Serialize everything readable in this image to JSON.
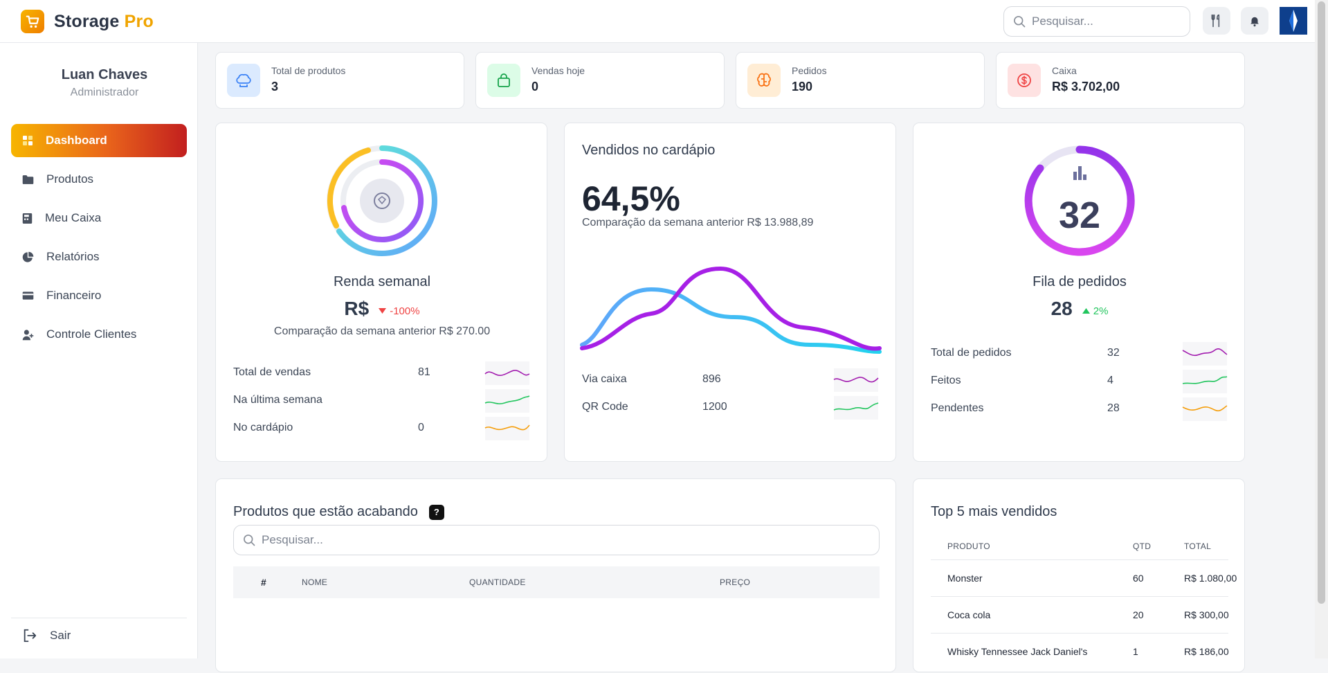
{
  "brand": {
    "name": "Storage",
    "suffix": "Pro"
  },
  "header": {
    "search_placeholder": "Pesquisar..."
  },
  "user": {
    "name": "Luan Chaves",
    "role": "Administrador"
  },
  "sidebar": {
    "items": [
      {
        "label": "Dashboard",
        "icon": "dashboard-icon"
      },
      {
        "label": "Produtos",
        "icon": "folder-icon"
      },
      {
        "label": "Meu Caixa",
        "icon": "cash-register-icon"
      },
      {
        "label": "Relatórios",
        "icon": "pie-chart-icon"
      },
      {
        "label": "Financeiro",
        "icon": "credit-card-icon"
      },
      {
        "label": "Controle Clientes",
        "icon": "user-add-icon"
      }
    ],
    "logout": "Sair"
  },
  "stats": [
    {
      "label": "Total de produtos",
      "value": "3",
      "icon": "chef-hat-icon",
      "color": "#dbeafe"
    },
    {
      "label": "Vendas hoje",
      "value": "0",
      "icon": "shopping-bag-icon",
      "color": "#dcfce7"
    },
    {
      "label": "Pedidos",
      "value": "190",
      "icon": "brain-icon",
      "color": "#ffedd5"
    },
    {
      "label": "Caixa",
      "value": "R$ 3.702,00",
      "icon": "dollar-icon",
      "color": "#fee2e2"
    }
  ],
  "weekly": {
    "title": "Renda semanal",
    "value": "R$",
    "change": "-100%",
    "compare": "Comparação da semana anterior R$ 270.00",
    "rows": [
      {
        "label": "Total de vendas",
        "value": "81"
      },
      {
        "label": "Na última semana",
        "value": ""
      },
      {
        "label": "No cardápio",
        "value": "0"
      }
    ]
  },
  "menu": {
    "title": "Vendidos no cardápio",
    "percent": "64,5%",
    "compare": "Comparação da semana anterior R$ 13.988,89",
    "rows": [
      {
        "label": "Via caixa",
        "value": "896"
      },
      {
        "label": "QR Code",
        "value": "1200"
      }
    ]
  },
  "queue": {
    "ring_value": "32",
    "title": "Fila de pedidos",
    "value": "28",
    "change": "2%",
    "rows": [
      {
        "label": "Total de pedidos",
        "value": "32"
      },
      {
        "label": "Feitos",
        "value": "4"
      },
      {
        "label": "Pendentes",
        "value": "28"
      }
    ]
  },
  "low_stock": {
    "title": "Produtos que estão acabando",
    "help": "?",
    "search_placeholder": "Pesquisar...",
    "columns": [
      "#",
      "NOME",
      "QUANTIDADE",
      "PREÇO"
    ]
  },
  "top5": {
    "title": "Top 5 mais vendidos",
    "columns": [
      "PRODUTO",
      "QTD",
      "TOTAL"
    ],
    "rows": [
      {
        "product": "Monster",
        "qty": "60",
        "total": "R$ 1.080,00"
      },
      {
        "product": "Coca cola",
        "qty": "20",
        "total": "R$ 300,00"
      },
      {
        "product": "Whisky Tennessee Jack Daniel's",
        "qty": "1",
        "total": "R$ 186,00"
      }
    ]
  },
  "colors": {
    "accent": "#f0a400",
    "purple": "#a21caf",
    "cyan": "#22d3ee",
    "green": "#22c55e",
    "red": "#ef4444"
  }
}
